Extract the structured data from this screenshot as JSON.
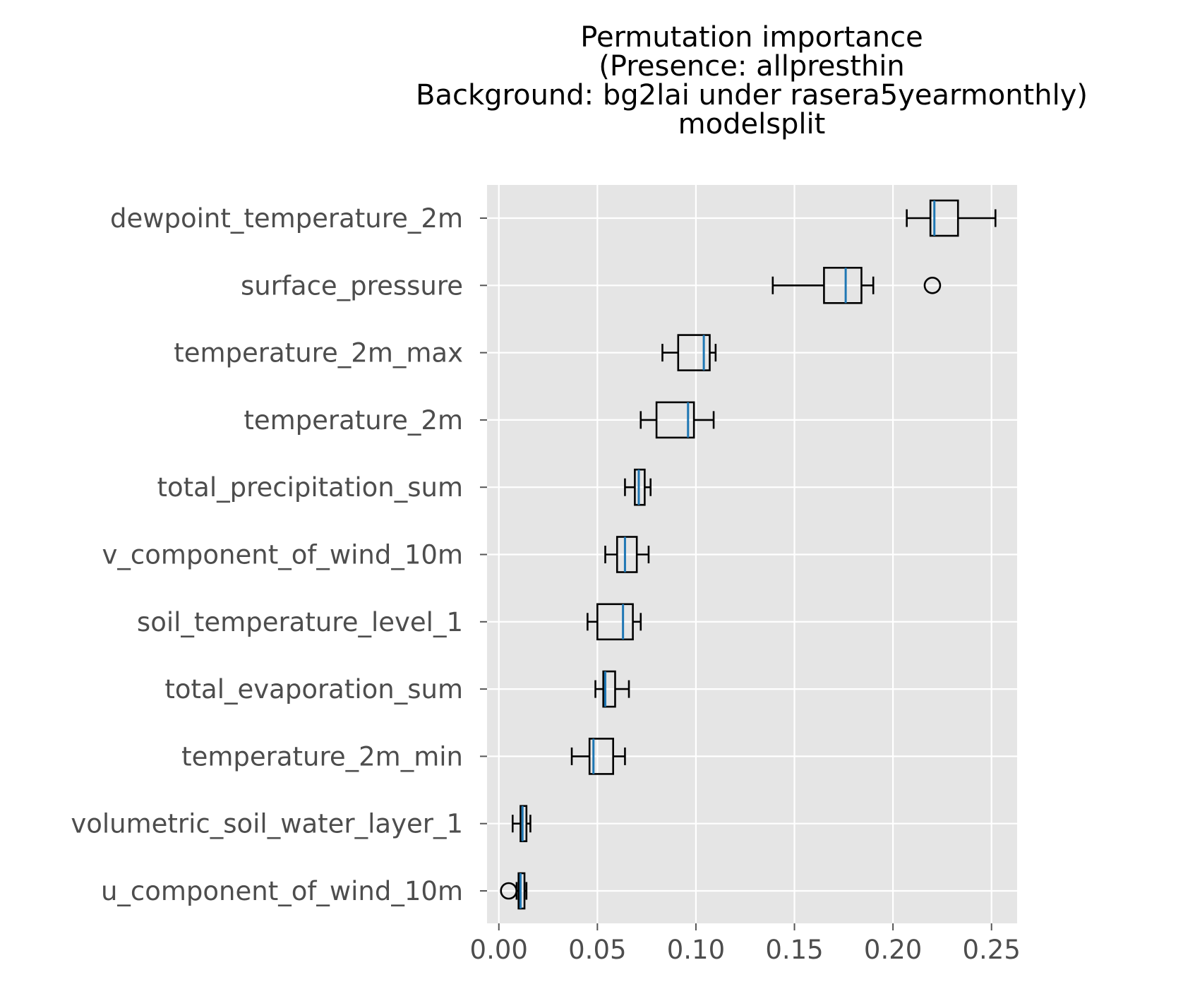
{
  "chart_data": {
    "type": "boxplot",
    "orientation": "horizontal",
    "title_lines": [
      "Permutation importance",
      "(Presence: allpresthin",
      "Background: bg2lai under rasera5yearmonthly)",
      "modelsplit"
    ],
    "xlabel": "",
    "ylabel": "",
    "xlim": [
      -0.006,
      0.263
    ],
    "xticks": [
      0.0,
      0.05,
      0.1,
      0.15,
      0.2,
      0.25
    ],
    "xtick_labels": [
      "0.00",
      "0.05",
      "0.10",
      "0.15",
      "0.20",
      "0.25"
    ],
    "grid": true,
    "style": "ggplot",
    "colors": {
      "panel": "#e5e5e5",
      "grid": "#ffffff",
      "box": "#000000",
      "median": "#1f77b4",
      "tick_text": "#4d4d4d",
      "title_text": "#000000"
    },
    "series": [
      {
        "label": "dewpoint_temperature_2m",
        "whislo": 0.207,
        "q1": 0.219,
        "median": 0.221,
        "q3": 0.233,
        "whishi": 0.252,
        "fliers": []
      },
      {
        "label": "surface_pressure",
        "whislo": 0.139,
        "q1": 0.165,
        "median": 0.176,
        "q3": 0.184,
        "whishi": 0.19,
        "fliers": [
          0.22
        ]
      },
      {
        "label": "temperature_2m_max",
        "whislo": 0.083,
        "q1": 0.091,
        "median": 0.104,
        "q3": 0.107,
        "whishi": 0.11,
        "fliers": []
      },
      {
        "label": "temperature_2m",
        "whislo": 0.072,
        "q1": 0.08,
        "median": 0.096,
        "q3": 0.099,
        "whishi": 0.109,
        "fliers": []
      },
      {
        "label": "total_precipitation_sum",
        "whislo": 0.064,
        "q1": 0.069,
        "median": 0.071,
        "q3": 0.074,
        "whishi": 0.077,
        "fliers": []
      },
      {
        "label": "v_component_of_wind_10m",
        "whislo": 0.054,
        "q1": 0.06,
        "median": 0.064,
        "q3": 0.07,
        "whishi": 0.076,
        "fliers": []
      },
      {
        "label": "soil_temperature_level_1",
        "whislo": 0.045,
        "q1": 0.05,
        "median": 0.063,
        "q3": 0.068,
        "whishi": 0.072,
        "fliers": []
      },
      {
        "label": "total_evaporation_sum",
        "whislo": 0.049,
        "q1": 0.053,
        "median": 0.054,
        "q3": 0.059,
        "whishi": 0.066,
        "fliers": []
      },
      {
        "label": "temperature_2m_min",
        "whislo": 0.037,
        "q1": 0.046,
        "median": 0.048,
        "q3": 0.058,
        "whishi": 0.064,
        "fliers": []
      },
      {
        "label": "volumetric_soil_water_layer_1",
        "whislo": 0.007,
        "q1": 0.011,
        "median": 0.012,
        "q3": 0.014,
        "whishi": 0.016,
        "fliers": []
      },
      {
        "label": "u_component_of_wind_10m",
        "whislo": 0.009,
        "q1": 0.01,
        "median": 0.011,
        "q3": 0.013,
        "whishi": 0.014,
        "fliers": [
          0.005
        ]
      }
    ]
  }
}
